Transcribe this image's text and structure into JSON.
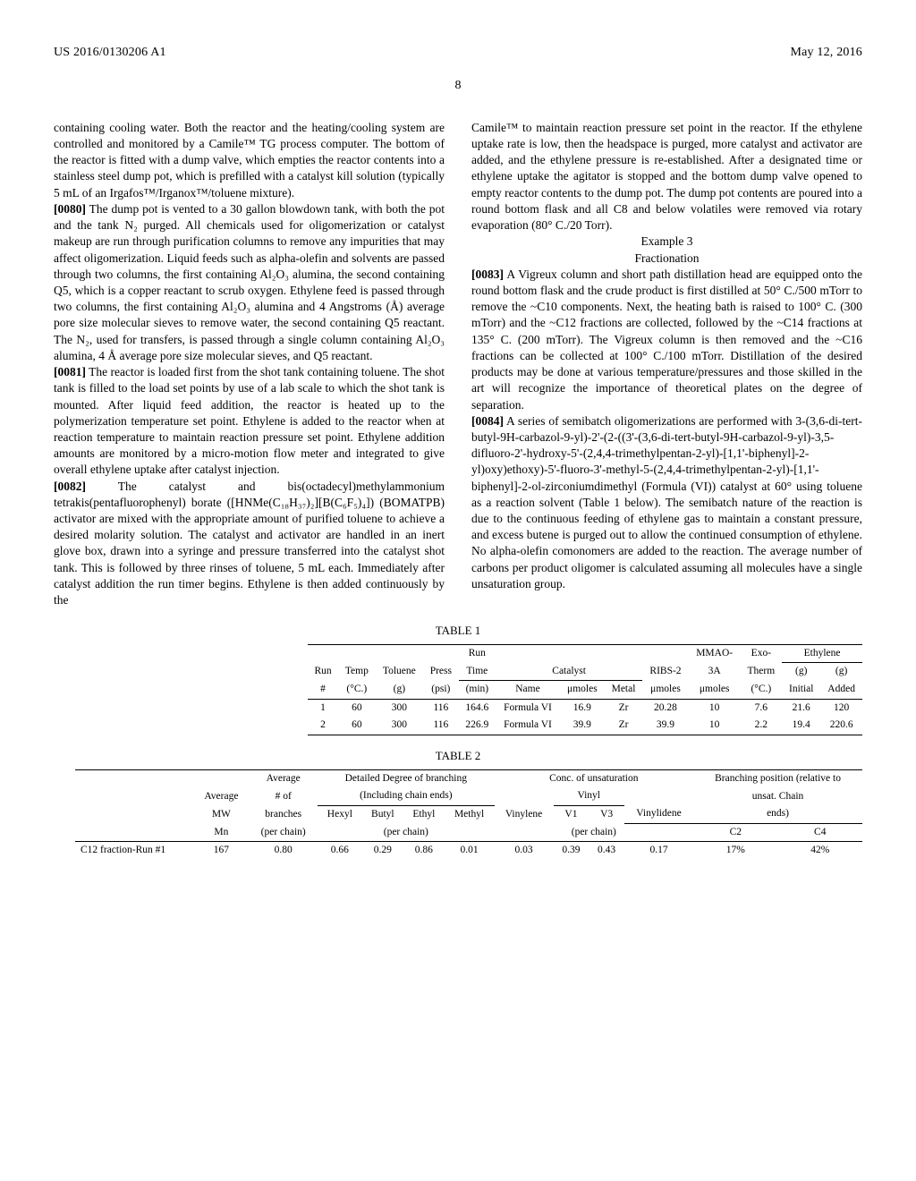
{
  "header": {
    "left": "US 2016/0130206 A1",
    "right": "May 12, 2016"
  },
  "page_number": "8",
  "col_left": {
    "p1": "containing cooling water. Both the reactor and the heating/cooling system are controlled and monitored by a Camile™ TG process computer. The bottom of the reactor is fitted with a dump valve, which empties the reactor contents into a stainless steel dump pot, which is prefilled with a catalyst kill solution (typically 5 mL of an Irgafos™/Irganox™/toluene mixture).",
    "p2_num": "[0080]",
    "p2": " The dump pot is vented to a 30 gallon blowdown tank, with both the pot and the tank N₂ purged. All chemicals used for oligomerization or catalyst makeup are run through purification columns to remove any impurities that may affect oligomerization. Liquid feeds such as alpha-olefin and solvents are passed through two columns, the first containing Al₂O₃ alumina, the second containing Q5, which is a copper reactant to scrub oxygen. Ethylene feed is passed through two columns, the first containing Al₂O₃ alumina and 4 Angstroms (Å) average pore size molecular sieves to remove water, the second containing Q5 reactant. The N₂, used for transfers, is passed through a single column containing Al₂O₃ alumina, 4 Å average pore size molecular sieves, and Q5 reactant.",
    "p3_num": "[0081]",
    "p3": " The reactor is loaded first from the shot tank containing toluene. The shot tank is filled to the load set points by use of a lab scale to which the shot tank is mounted. After liquid feed addition, the reactor is heated up to the polymerization temperature set point. Ethylene is added to the reactor when at reaction temperature to maintain reaction pressure set point. Ethylene addition amounts are monitored by a micro-motion flow meter and integrated to give overall ethylene uptake after catalyst injection.",
    "p4_num": "[0082]",
    "p4": " The catalyst and bis(octadecyl)methylammonium tetrakis(pentafluorophenyl) borate ([HNMe(C₁₈H₃₇)₂][B(C₆F₅)₄]) (BOMATPB) activator are mixed with the appropriate amount of purified toluene to achieve a desired molarity solution. The catalyst and activator are handled in an inert glove box, drawn into a syringe and pressure transferred into the catalyst shot tank. This is followed by three rinses of toluene, 5 mL each. Immediately after catalyst addition the run timer begins. Ethylene is then added continuously by the"
  },
  "col_right": {
    "p1": "Camile™ to maintain reaction pressure set point in the reactor. If the ethylene uptake rate is low, then the headspace is purged, more catalyst and activator are added, and the ethylene pressure is re-established. After a designated time or ethylene uptake the agitator is stopped and the bottom dump valve opened to empty reactor contents to the dump pot. The dump pot contents are poured into a round bottom flask and all C8 and below volatiles were removed via rotary evaporation (80° C./20 Torr).",
    "ex_title": "Example 3",
    "ex_sub": "Fractionation",
    "p2_num": "[0083]",
    "p2": " A Vigreux column and short path distillation head are equipped onto the round bottom flask and the crude product is first distilled at 50° C./500 mTorr to remove the ~C10 components. Next, the heating bath is raised to 100° C. (300 mTorr) and the ~C12 fractions are collected, followed by the ~C14 fractions at 135° C. (200 mTorr). The Vigreux column is then removed and the ~C16 fractions can be collected at 100° C./100 mTorr. Distillation of the desired products may be done at various temperature/pressures and those skilled in the art will recognize the importance of theoretical plates on the degree of separation.",
    "p3_num": "[0084]",
    "p3": " A series of semibatch oligomerizations are performed with 3-(3,6-di-tert-butyl-9H-carbazol-9-yl)-2'-(2-((3'-(3,6-di-tert-butyl-9H-carbazol-9-yl)-3,5-difluoro-2'-hydroxy-5'-(2,4,4-trimethylpentan-2-yl)-[1,1'-biphenyl]-2-yl)oxy)ethoxy)-5'-fluoro-3'-methyl-5-(2,4,4-trimethylpentan-2-yl)-[1,1'-biphenyl]-2-ol-zirconiumdimethyl (Formula (VI)) catalyst at 60° using toluene as a reaction solvent (Table 1 below). The semibatch nature of the reaction is due to the continuous feeding of ethylene gas to maintain a constant pressure, and excess butene is purged out to allow the continued consumption of ethylene. No alpha-olefin comonomers are added to the reaction. The average number of carbons per product oligomer is calculated assuming all molecules have a single unsaturation group."
  },
  "table1": {
    "caption": "TABLE 1",
    "headers": {
      "row1": [
        "",
        "",
        "",
        "",
        "Run",
        "",
        "",
        "",
        "",
        "MMAO-",
        "Exo-",
        "Ethylene"
      ],
      "row2": [
        "Run",
        "Temp",
        "Toluene",
        "Press",
        "Time",
        "Catalyst",
        "",
        "",
        "RIBS-2",
        "3A",
        "Therm",
        "(g)",
        "(g)"
      ],
      "row3": [
        "#",
        "(°C.)",
        "(g)",
        "(psi)",
        "(min)",
        "Name",
        "μmoles",
        "Metal",
        "μmoles",
        "μmoles",
        "(°C.)",
        "Initial",
        "Added"
      ]
    },
    "rows": [
      [
        "1",
        "60",
        "300",
        "116",
        "164.6",
        "Formula VI",
        "16.9",
        "Zr",
        "20.28",
        "10",
        "7.6",
        "21.6",
        "120"
      ],
      [
        "2",
        "60",
        "300",
        "116",
        "226.9",
        "Formula VI",
        "39.9",
        "Zr",
        "39.9",
        "10",
        "2.2",
        "19.4",
        "220.6"
      ]
    ]
  },
  "table2": {
    "caption": "TABLE 2",
    "headers": {
      "row1": [
        "",
        "",
        "Average",
        "Detailed Degree of branching",
        "Conc. of unsaturation",
        "Branching position (relative to"
      ],
      "row2": [
        "",
        "Average",
        "# of",
        "(Including chain ends)",
        "",
        "Vinyl",
        "",
        "",
        "unsat. Chain"
      ],
      "row3": [
        "",
        "MW",
        "branches",
        "Hexyl",
        "Butyl",
        "Ethyl",
        "Methyl",
        "Vinylene",
        "V1",
        "V3",
        "Vinylidene",
        "ends)"
      ],
      "row4": [
        "",
        "Mn",
        "(per chain)",
        "(per chain)",
        "(per chain)",
        "C2",
        "C4"
      ]
    },
    "rows": [
      [
        "C12 fraction-Run #1",
        "167",
        "0.80",
        "0.66",
        "0.29",
        "0.86",
        "0.01",
        "0.03",
        "0.39",
        "0.43",
        "0.17",
        "17%",
        "42%"
      ]
    ]
  }
}
